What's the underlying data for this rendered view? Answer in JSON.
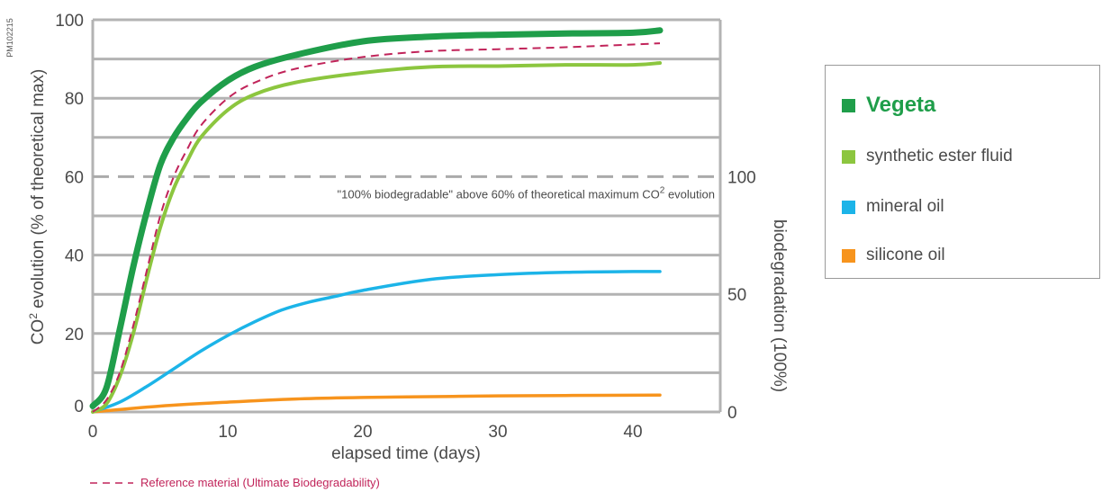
{
  "chart_data": {
    "type": "line",
    "code_label": "PM102215",
    "xlabel": "elapsed time (days)",
    "ylabel": "CO",
    "ylabel_sup": "2",
    "ylabel_rest": " evolution (% of theoretical max)",
    "y2label": "biodegradation (100%)",
    "xlim": [
      0,
      47
    ],
    "ylim": [
      0,
      100
    ],
    "x_ticks": [
      "0",
      "10",
      "20",
      "30",
      "40"
    ],
    "x_tick_values": [
      0,
      10,
      20,
      30,
      40
    ],
    "y_ticks": [
      "0",
      "20",
      "40",
      "60",
      "80",
      "100"
    ],
    "y_tick_values": [
      0,
      20,
      40,
      60,
      80,
      100
    ],
    "y2_ticks": [
      "0",
      "50",
      "100"
    ],
    "y2_tick_values": [
      0,
      30,
      60
    ],
    "threshold": {
      "y": 60,
      "label": "\"100% biodegradable\" above 60% of theoretical maximum CO",
      "label_sup": "2",
      "label_rest": " evolution"
    },
    "reference": {
      "label": "Reference material (Ultimate Biodegradability)",
      "color": "#c1245a",
      "points": [
        [
          0,
          0
        ],
        [
          1,
          3
        ],
        [
          2,
          10
        ],
        [
          3,
          22
        ],
        [
          4,
          36
        ],
        [
          5,
          50
        ],
        [
          6,
          60
        ],
        [
          7,
          67
        ],
        [
          8,
          73
        ],
        [
          10,
          80
        ],
        [
          12,
          84
        ],
        [
          15,
          87.5
        ],
        [
          20,
          90.5
        ],
        [
          25,
          92
        ],
        [
          30,
          92.5
        ],
        [
          35,
          93
        ],
        [
          42,
          94
        ]
      ]
    },
    "series": [
      {
        "name": "Vegeta",
        "color": "#1f9e4a",
        "bold": true,
        "width": 7,
        "points": [
          [
            0,
            1.5
          ],
          [
            1,
            6
          ],
          [
            2,
            21
          ],
          [
            3,
            37
          ],
          [
            4,
            51
          ],
          [
            5,
            63
          ],
          [
            6,
            70
          ],
          [
            7,
            75
          ],
          [
            8,
            79
          ],
          [
            10,
            84.5
          ],
          [
            12,
            88
          ],
          [
            15,
            91
          ],
          [
            20,
            94.5
          ],
          [
            25,
            95.7
          ],
          [
            30,
            96.2
          ],
          [
            35,
            96.5
          ],
          [
            40,
            96.7
          ],
          [
            42,
            97.3
          ]
        ]
      },
      {
        "name": "synthetic ester fluid",
        "color": "#8cc63f",
        "bold": false,
        "width": 4,
        "points": [
          [
            0,
            0
          ],
          [
            1,
            2
          ],
          [
            2,
            9
          ],
          [
            3,
            20
          ],
          [
            4,
            34
          ],
          [
            5,
            47
          ],
          [
            6,
            57
          ],
          [
            7,
            64
          ],
          [
            8,
            70
          ],
          [
            10,
            77
          ],
          [
            12,
            81
          ],
          [
            15,
            84
          ],
          [
            20,
            86.5
          ],
          [
            25,
            88
          ],
          [
            30,
            88.2
          ],
          [
            35,
            88.5
          ],
          [
            40,
            88.5
          ],
          [
            42,
            89
          ]
        ]
      },
      {
        "name": "mineral oil",
        "color": "#1cb4e8",
        "bold": false,
        "width": 3.5,
        "points": [
          [
            0,
            0
          ],
          [
            2,
            2.5
          ],
          [
            4,
            6.5
          ],
          [
            6,
            11
          ],
          [
            8,
            15.5
          ],
          [
            10,
            19.5
          ],
          [
            12,
            23
          ],
          [
            14,
            26
          ],
          [
            16,
            28
          ],
          [
            18,
            29.5
          ],
          [
            20,
            31
          ],
          [
            25,
            33.8
          ],
          [
            30,
            35
          ],
          [
            35,
            35.6
          ],
          [
            40,
            35.8
          ],
          [
            42,
            35.8
          ]
        ]
      },
      {
        "name": "silicone oil",
        "color": "#f7941d",
        "bold": false,
        "width": 3.5,
        "points": [
          [
            0,
            0
          ],
          [
            5,
            1.5
          ],
          [
            10,
            2.5
          ],
          [
            15,
            3.3
          ],
          [
            20,
            3.7
          ],
          [
            25,
            3.9
          ],
          [
            30,
            4.1
          ],
          [
            35,
            4.2
          ],
          [
            42,
            4.3
          ]
        ]
      }
    ],
    "grid": true,
    "legend_position": "right"
  }
}
